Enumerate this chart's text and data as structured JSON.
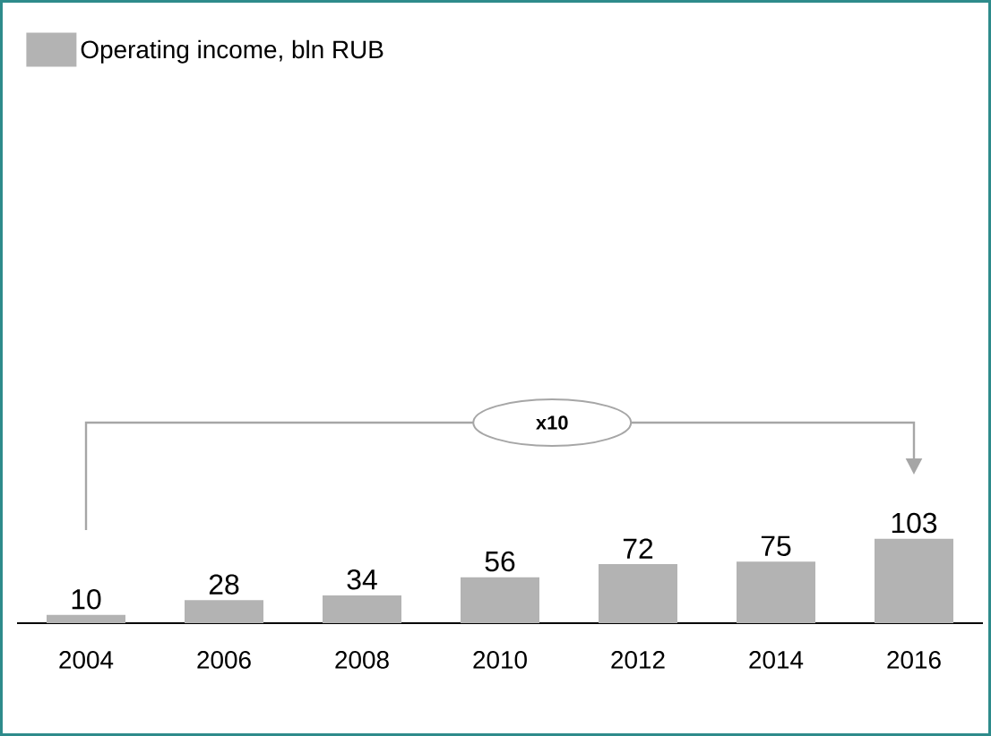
{
  "chart_data": {
    "type": "bar",
    "categories": [
      "2004",
      "2006",
      "2008",
      "2010",
      "2012",
      "2014",
      "2016"
    ],
    "series": [
      {
        "name": "Operating income, bln RUB",
        "color": "#b3b3b3",
        "values": [
          10,
          28,
          34,
          56,
          72,
          75,
          103
        ]
      }
    ],
    "data_labels": true,
    "legend": "top left",
    "annotations": [
      "x10"
    ]
  }
}
